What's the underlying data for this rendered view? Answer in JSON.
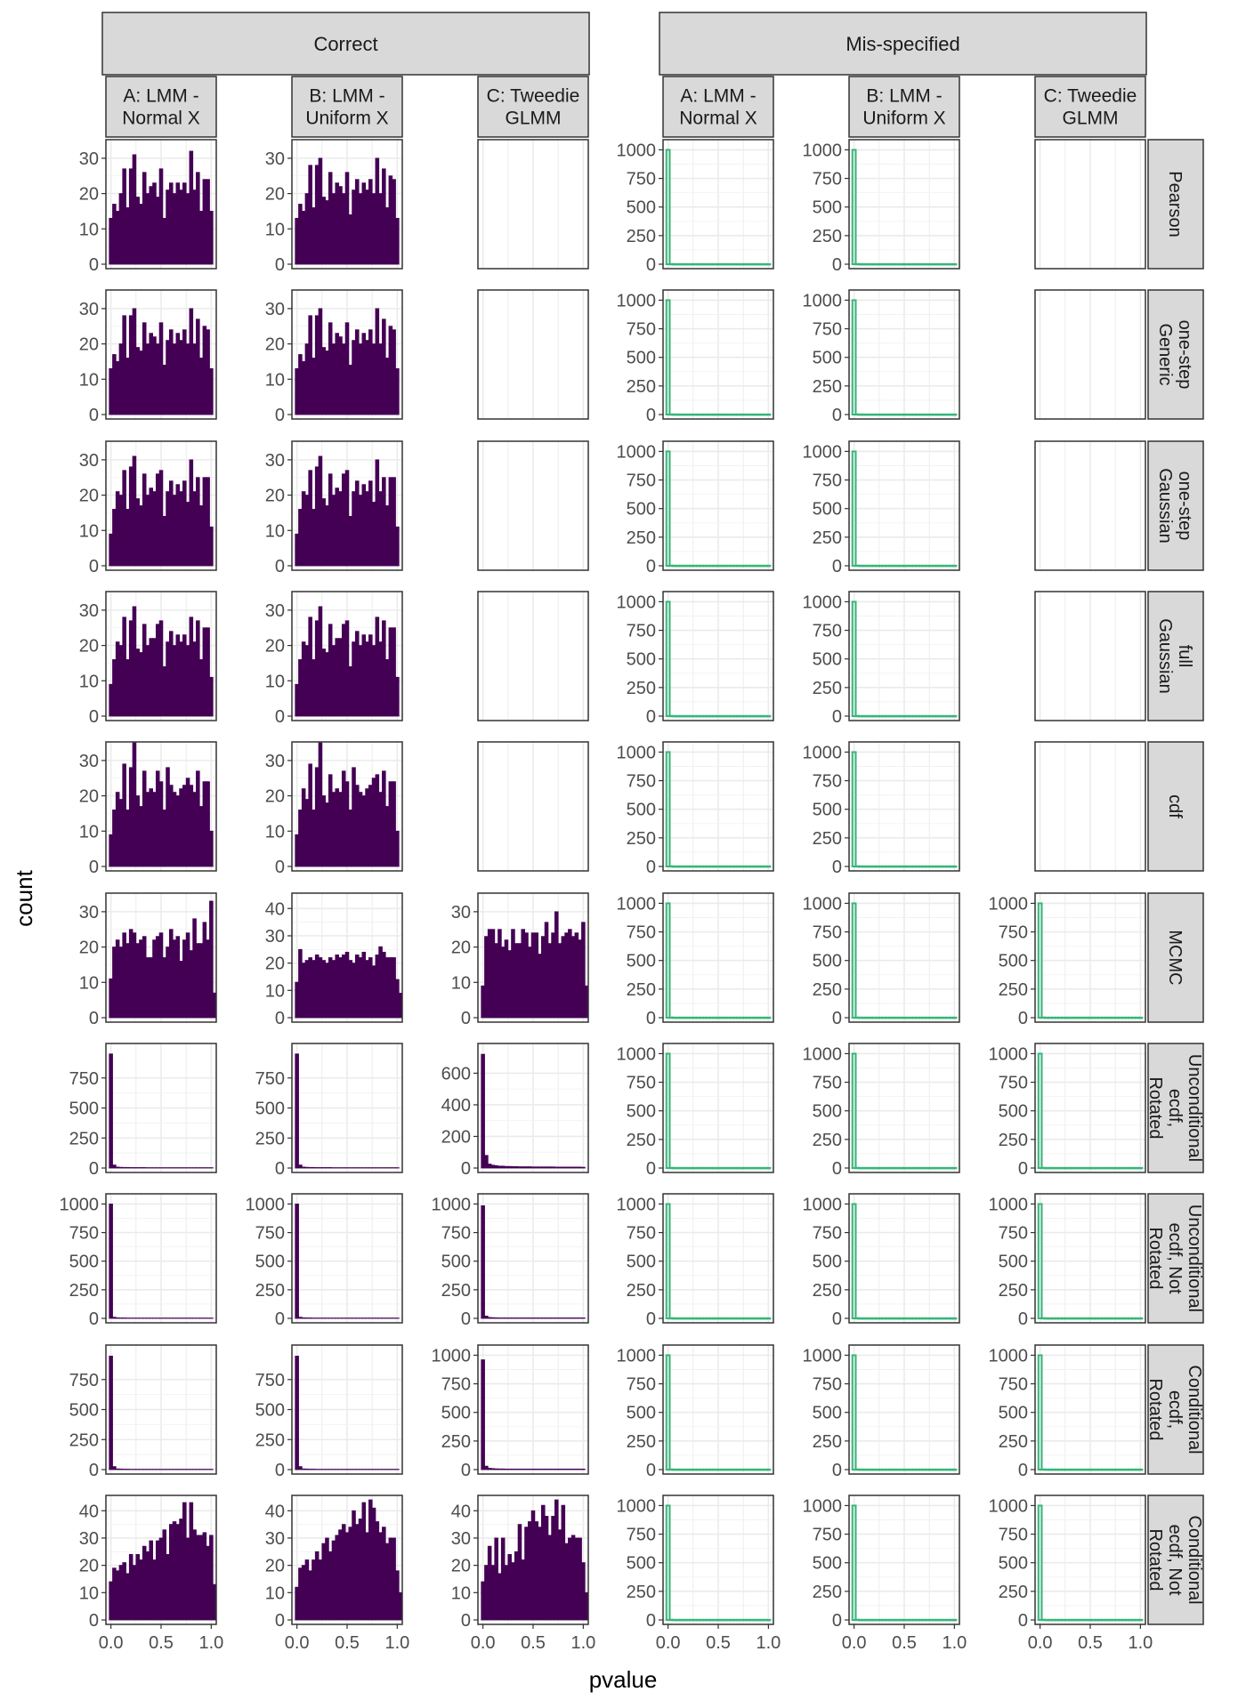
{
  "chart_data": {
    "type": "bar",
    "title": "",
    "xlabel": "pvalue",
    "ylabel": "count",
    "xlim": [
      0,
      1
    ],
    "xticks": [
      0,
      0.5,
      1
    ],
    "xtick_labels": [
      "0.0",
      "0.5",
      "1.0"
    ],
    "colors": {
      "Correct": "#440154",
      "Mis-specified": "#35b779"
    },
    "facet_groups": [
      "Correct",
      "Mis-specified"
    ],
    "facet_cols": [
      "A: LMM -\nNormal X",
      "B: LMM -\nUniform X",
      "C: Tweedie\nGLMM"
    ],
    "facet_rows": [
      "Pearson",
      "one-step\nGeneric",
      "one-step\nGaussian",
      "full\nGaussian",
      "cdf",
      "MCMC",
      "Unconditional\necdf,\nRotated",
      "Unconditional\necdf, Not\nRotated",
      "Conditional\necdf,\nRotated",
      "Conditional\necdf, Not\nRotated"
    ],
    "row_ylims": {
      "uniform30": [
        0,
        34
      ],
      "uniform40": [
        0,
        44
      ],
      "skew700": [
        0,
        760
      ],
      "spike1000": [
        0,
        1050
      ],
      "spike950": [
        0,
        1000
      ]
    },
    "row_yticks": {
      "uniform30": [
        0,
        10,
        20,
        30
      ],
      "uniform40": [
        0,
        10,
        20,
        30,
        40
      ],
      "skew700": [
        0,
        200,
        400,
        600
      ],
      "spike1000": [
        0,
        250,
        500,
        750,
        1000
      ],
      "spike950": [
        0,
        250,
        500,
        750
      ]
    },
    "histograms": {
      "U1": [
        13,
        17,
        15,
        20,
        27,
        16,
        27,
        31,
        19,
        17,
        26,
        20,
        22,
        23,
        19,
        27,
        13,
        21,
        23,
        20,
        23,
        21,
        23,
        20,
        32,
        21,
        26,
        15,
        24,
        24,
        15
      ],
      "U2": [
        13,
        17,
        15,
        20,
        28,
        16,
        28,
        30,
        19,
        18,
        26,
        20,
        23,
        22,
        20,
        26,
        14,
        21,
        24,
        20,
        23,
        21,
        24,
        20,
        30,
        20,
        27,
        16,
        25,
        24,
        13
      ],
      "U3": [
        9,
        16,
        21,
        20,
        27,
        16,
        28,
        31,
        19,
        17,
        26,
        20,
        22,
        21,
        26,
        27,
        14,
        21,
        24,
        20,
        23,
        21,
        24,
        18,
        30,
        21,
        25,
        17,
        25,
        25,
        11
      ],
      "U4": [
        9,
        16,
        21,
        20,
        28,
        16,
        27,
        31,
        19,
        18,
        26,
        20,
        22,
        22,
        26,
        27,
        14,
        21,
        24,
        20,
        23,
        21,
        23,
        20,
        28,
        21,
        27,
        16,
        25,
        25,
        11
      ],
      "U5": [
        9,
        16,
        21,
        20,
        28,
        16,
        27,
        31,
        19,
        19,
        25,
        20,
        22,
        22,
        27,
        28,
        16,
        22,
        24,
        20,
        23,
        21,
        22,
        21,
        27,
        20,
        27,
        16,
        25,
        26,
        12
      ],
      "U6": [
        9,
        18,
        21,
        20,
        27,
        16,
        28,
        31,
        20,
        18,
        26,
        22,
        22,
        21,
        26,
        27,
        14,
        21,
        25,
        20,
        23,
        21,
        24,
        18,
        28,
        21,
        25,
        17,
        26,
        26,
        12
      ],
      "U7": [
        9,
        16,
        21,
        19,
        29,
        16,
        28,
        35,
        20,
        17,
        27,
        21,
        22,
        21,
        27,
        24,
        16,
        28,
        23,
        21,
        20,
        22,
        23,
        25,
        23,
        21,
        27,
        17,
        24,
        24,
        10
      ],
      "U8": [
        9,
        16,
        22,
        19,
        29,
        16,
        28,
        35,
        20,
        18,
        26,
        21,
        22,
        21,
        27,
        24,
        16,
        28,
        23,
        21,
        20,
        22,
        23,
        25,
        26,
        21,
        27,
        17,
        24,
        24,
        10
      ],
      "U9": [
        11,
        20,
        22,
        20,
        24,
        21,
        25,
        24,
        21,
        22,
        23,
        17,
        17,
        22,
        23,
        24,
        17,
        20,
        25,
        22,
        23,
        16,
        22,
        24,
        19,
        28,
        21,
        21,
        27,
        22,
        33,
        7
      ],
      "U10": [
        13,
        25,
        20,
        21,
        22,
        21,
        23,
        22,
        21,
        20,
        22,
        21,
        23,
        22,
        23,
        24,
        21,
        20,
        23,
        22,
        24,
        21,
        22,
        19,
        23,
        26,
        24,
        22,
        22,
        22,
        14,
        9
      ],
      "U11": [
        9,
        23,
        25,
        25,
        21,
        25,
        20,
        22,
        19,
        25,
        21,
        21,
        25,
        24,
        20,
        24,
        24,
        18,
        23,
        27,
        21,
        24,
        30,
        21,
        23,
        24,
        25,
        23,
        24,
        22,
        27,
        9
      ],
      "C1": [
        14,
        19,
        18,
        20,
        21,
        17,
        24,
        20,
        24,
        22,
        27,
        25,
        29,
        22,
        29,
        30,
        33,
        24,
        35,
        36,
        35,
        37,
        43,
        30,
        43,
        33,
        31,
        31,
        32,
        27,
        31,
        13
      ],
      "C2": [
        12,
        19,
        20,
        22,
        18,
        22,
        25,
        22,
        28,
        30,
        25,
        29,
        31,
        33,
        35,
        32,
        34,
        40,
        35,
        37,
        43,
        32,
        44,
        41,
        36,
        32,
        34,
        28,
        30,
        30,
        18,
        10
      ],
      "C3": [
        14,
        20,
        27,
        20,
        30,
        17,
        30,
        20,
        24,
        21,
        25,
        35,
        22,
        34,
        36,
        40,
        36,
        34,
        42,
        38,
        31,
        38,
        44,
        33,
        42,
        28,
        30,
        31,
        30,
        30,
        21,
        10
      ],
      "K1": [
        950,
        25,
        8,
        6,
        5,
        5,
        4,
        4,
        4,
        4,
        4,
        3,
        3,
        3,
        3,
        3,
        3,
        3,
        3,
        3,
        3,
        3,
        3,
        3,
        3,
        3,
        3,
        3,
        3,
        3,
        3
      ],
      "K2": [
        720,
        80,
        25,
        18,
        15,
        12,
        12,
        10,
        10,
        9,
        9,
        8,
        8,
        8,
        8,
        7,
        7,
        7,
        7,
        7,
        7,
        7,
        6,
        6,
        6,
        6,
        6,
        6,
        6,
        6,
        5
      ],
      "K3": [
        1000,
        10,
        5,
        4,
        4,
        3,
        3,
        3,
        3,
        3,
        3,
        3,
        3,
        3,
        3,
        3,
        3,
        3,
        3,
        3,
        3,
        3,
        3,
        3,
        3,
        3,
        3,
        3,
        3,
        3,
        3
      ],
      "K4": [
        985,
        20,
        8,
        6,
        5,
        4,
        4,
        4,
        4,
        4,
        4,
        4,
        4,
        4,
        4,
        4,
        4,
        4,
        4,
        4,
        4,
        4,
        4,
        4,
        4,
        4,
        4,
        4,
        4,
        4,
        4
      ],
      "K5": [
        945,
        25,
        6,
        5,
        4,
        4,
        3,
        3,
        3,
        3,
        3,
        3,
        3,
        3,
        3,
        3,
        3,
        3,
        3,
        3,
        3,
        3,
        3,
        3,
        3,
        3,
        3,
        3,
        3,
        3,
        3
      ],
      "K6": [
        960,
        30,
        12,
        9,
        7,
        6,
        6,
        5,
        5,
        5,
        5,
        5,
        5,
        5,
        5,
        5,
        5,
        5,
        5,
        5,
        5,
        5,
        5,
        5,
        5,
        5,
        5,
        5,
        5,
        5,
        5
      ],
      "S": [
        1000,
        2,
        1,
        1,
        1,
        1,
        1,
        1,
        1,
        1,
        1,
        1,
        1,
        1,
        1,
        1,
        1,
        1,
        1,
        1,
        1,
        1,
        1,
        1,
        1,
        1,
        1,
        1,
        1,
        1,
        1
      ]
    },
    "panels": [
      [
        "U1",
        "U2",
        null,
        "S",
        "S",
        null
      ],
      [
        "U2",
        "U2",
        null,
        "S",
        "S",
        null
      ],
      [
        "U3",
        "U3",
        null,
        "S",
        "S",
        null
      ],
      [
        "U4",
        "U4",
        null,
        "S",
        "S",
        null
      ],
      [
        "U7",
        "U8",
        null,
        "S",
        "S",
        null
      ],
      [
        "U9",
        "U10",
        "U11",
        "S",
        "S",
        "S"
      ],
      [
        "K1",
        "K1",
        "K2",
        "S",
        "S",
        "S"
      ],
      [
        "K3",
        "K3",
        "K4",
        "S",
        "S",
        "S"
      ],
      [
        "K5",
        "K5",
        "K6",
        "S",
        "S",
        "S"
      ],
      [
        "C1",
        "C2",
        "C3",
        "S",
        "S",
        "S"
      ]
    ],
    "panel_scales": [
      [
        "uniform30",
        "uniform30",
        null,
        "spike1000",
        "spike1000",
        null
      ],
      [
        "uniform30",
        "uniform30",
        null,
        "spike1000",
        "spike1000",
        null
      ],
      [
        "uniform30",
        "uniform30",
        null,
        "spike1000",
        "spike1000",
        null
      ],
      [
        "uniform30",
        "uniform30",
        null,
        "spike1000",
        "spike1000",
        null
      ],
      [
        "uniform30",
        "uniform30",
        null,
        "spike1000",
        "spike1000",
        null
      ],
      [
        "uniform30",
        "uniform40",
        "uniform30",
        "spike1000",
        "spike1000",
        "spike1000"
      ],
      [
        "spike950",
        "spike950",
        "skew700",
        "spike1000",
        "spike1000",
        "spike1000"
      ],
      [
        "spike1000",
        "spike1000",
        "spike1000",
        "spike1000",
        "spike1000",
        "spike1000"
      ],
      [
        "spike950",
        "spike950",
        "spike1000",
        "spike1000",
        "spike1000",
        "spike1000"
      ],
      [
        "uniform40",
        "uniform40",
        "uniform40",
        "spike1000",
        "spike1000",
        "spike1000"
      ]
    ]
  }
}
